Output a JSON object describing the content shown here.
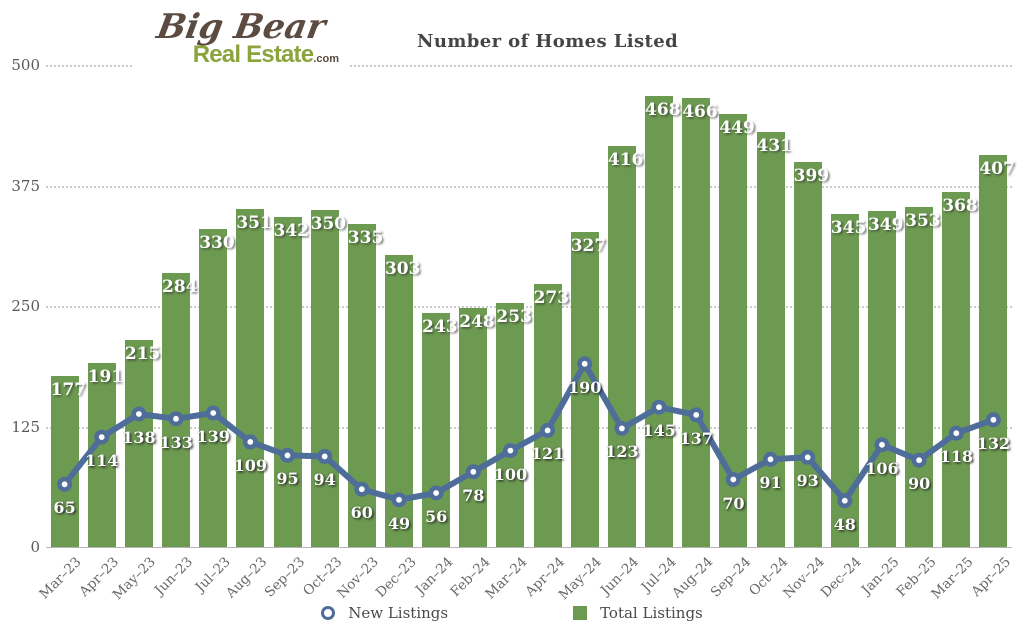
{
  "logo": {
    "name": "Big Bear",
    "subtitle": "Real Estate",
    "suffix": ".com"
  },
  "chart_data": {
    "type": "bar",
    "title": "Number of Homes Listed",
    "categories": [
      "Mar–23",
      "Apr–23",
      "May–23",
      "Jun–23",
      "Jul–23",
      "Aug–23",
      "Sep–23",
      "Oct–23",
      "Nov–23",
      "Dec–23",
      "Jan–24",
      "Feb–24",
      "Mar–24",
      "Apr–24",
      "May–24",
      "Jun–24",
      "Jul–24",
      "Aug–24",
      "Sep–24",
      "Oct–24",
      "Nov–24",
      "Dec–24",
      "Jan–25",
      "Feb–25",
      "Mar–25",
      "Apr–25"
    ],
    "series": [
      {
        "name": "New Listings",
        "type": "line",
        "color": "#4e6e99",
        "values": [
          65,
          114,
          138,
          133,
          139,
          109,
          95,
          94,
          60,
          49,
          56,
          78,
          100,
          121,
          190,
          123,
          145,
          137,
          70,
          91,
          93,
          48,
          106,
          90,
          118,
          132
        ]
      },
      {
        "name": "Total Listings",
        "type": "bar",
        "color": "#6d9a51",
        "values": [
          177,
          191,
          215,
          284,
          330,
          351,
          342,
          350,
          335,
          303,
          243,
          248,
          253,
          273,
          327,
          416,
          468,
          466,
          449,
          431,
          399,
          345,
          349,
          353,
          368,
          407
        ]
      }
    ],
    "xlabel": "",
    "ylabel": "",
    "ylim": [
      0,
      500
    ],
    "yticks": [
      0,
      125,
      250,
      375,
      500
    ],
    "grid": "horizontal dotted",
    "legend_position": "bottom center",
    "data_labels": true
  },
  "colors": {
    "bar": "#6d9a51",
    "line": "#4e6e99",
    "marker_fill": "#ffffff",
    "grid": "#cccccc",
    "title_text": "#454545",
    "axis_text": "#686868",
    "value_label_text": "#ffffff",
    "logo_brown": "#5b4b40",
    "logo_green": "#8ca43d",
    "background": "#ffffff"
  }
}
